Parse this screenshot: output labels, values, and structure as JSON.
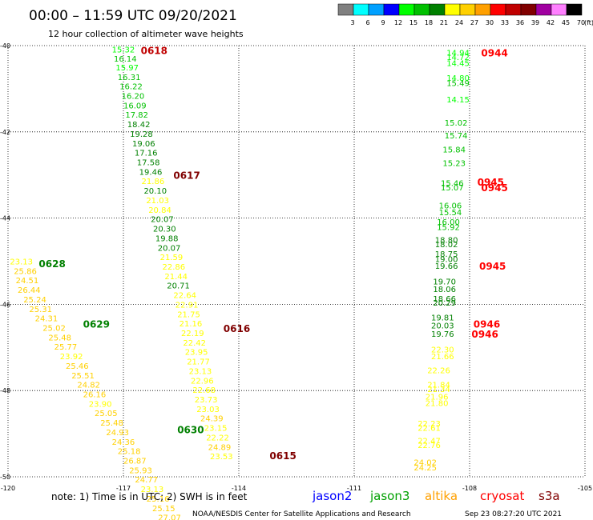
{
  "title": "00:00 – 11:59 UTC 09/20/2021",
  "subtitle": "12 hour collection of altimeter wave heights",
  "colorbar": {
    "ticks": [
      "3",
      "6",
      "9",
      "12",
      "15",
      "18",
      "21",
      "24",
      "27",
      "30",
      "33",
      "36",
      "39",
      "42",
      "45",
      "70"
    ],
    "unit": "(ft)",
    "colors": [
      "#808080",
      "#00ffff",
      "#00a0ff",
      "#0000ff",
      "#00ff00",
      "#00c000",
      "#008000",
      "#ffff00",
      "#ffd000",
      "#ffa000",
      "#ff0000",
      "#c00000",
      "#800000",
      "#a000a0",
      "#ff80ff",
      "#000000"
    ]
  },
  "note": "note: 1) Time is in UTC; 2) SWH is in feet",
  "satellites": [
    {
      "name": "jason2",
      "color": "#0000ff"
    },
    {
      "name": "jason3",
      "color": "#00a000"
    },
    {
      "name": "altika",
      "color": "#ffa000"
    },
    {
      "name": "cryosat",
      "color": "#ff0000"
    },
    {
      "name": "s3a",
      "color": "#800000"
    }
  ],
  "credit": "NOAA/NESDIS Center for Satellite Applications and Research",
  "timestamp": "Sep 23 08:27:20 UTC 2021",
  "chart_data": {
    "type": "scatter",
    "title": "00:00 – 11:59 UTC 09/20/2021",
    "xlabel": "",
    "ylabel": "",
    "xlim": [
      -120,
      -105
    ],
    "ylim": [
      -50,
      -40
    ],
    "x_ticks": [
      "-120",
      "-117",
      "-114",
      "-111",
      "-108",
      "-105"
    ],
    "y_ticks": [
      "-40",
      "-42",
      "-44",
      "-46",
      "-48",
      "-50"
    ],
    "grid": "dotted",
    "tracks": [
      {
        "label": "0618",
        "label_color": "#c00000",
        "label_x": -116.55,
        "label_y": -40.1,
        "points": [
          {
            "x": -117.3,
            "y": -40.08,
            "v": "15.32",
            "c": "#00ff00"
          },
          {
            "x": -117.25,
            "y": -40.3,
            "v": "16.14",
            "c": "#00c000"
          },
          {
            "x": -117.2,
            "y": -40.5,
            "v": "15.97",
            "c": "#00ff00"
          },
          {
            "x": -117.15,
            "y": -40.72,
            "v": "16.31",
            "c": "#00c000"
          },
          {
            "x": -117.1,
            "y": -40.94,
            "v": "16.22",
            "c": "#00c000"
          },
          {
            "x": -117.05,
            "y": -41.16,
            "v": "16.20",
            "c": "#00c000"
          },
          {
            "x": -117.0,
            "y": -41.38,
            "v": "16.09",
            "c": "#00c000"
          },
          {
            "x": -116.95,
            "y": -41.6,
            "v": "17.82",
            "c": "#00c000"
          },
          {
            "x": -116.9,
            "y": -41.82,
            "v": "18.42",
            "c": "#008000"
          },
          {
            "x": -116.83,
            "y": -42.04,
            "v": "19.28",
            "c": "#008000"
          },
          {
            "x": -116.77,
            "y": -42.26,
            "v": "19.06",
            "c": "#008000"
          },
          {
            "x": -116.71,
            "y": -42.48,
            "v": "17.16",
            "c": "#008000"
          },
          {
            "x": -116.65,
            "y": -42.7,
            "v": "17.58",
            "c": "#008000"
          },
          {
            "x": -116.59,
            "y": -42.92,
            "v": "19.46",
            "c": "#008000"
          },
          {
            "x": -116.53,
            "y": -43.14,
            "v": "21.86",
            "c": "#ffff00"
          },
          {
            "x": -116.47,
            "y": -43.36,
            "v": "20.10",
            "c": "#008000"
          },
          {
            "x": -116.41,
            "y": -43.58,
            "v": "21.03",
            "c": "#ffff00"
          },
          {
            "x": -116.35,
            "y": -43.8,
            "v": "20.84",
            "c": "#ffff00"
          },
          {
            "x": -116.29,
            "y": -44.02,
            "v": "20.07",
            "c": "#008000"
          },
          {
            "x": -116.23,
            "y": -44.24,
            "v": "20.30",
            "c": "#008000"
          },
          {
            "x": -116.17,
            "y": -44.46,
            "v": "19.88",
            "c": "#008000"
          },
          {
            "x": -116.11,
            "y": -44.68,
            "v": "20.07",
            "c": "#008000"
          },
          {
            "x": -116.05,
            "y": -44.9,
            "v": "21.59",
            "c": "#ffff00"
          },
          {
            "x": -115.99,
            "y": -45.12,
            "v": "22.86",
            "c": "#ffff00"
          },
          {
            "x": -115.93,
            "y": -45.34,
            "v": "21.44",
            "c": "#ffff00"
          },
          {
            "x": -115.87,
            "y": -45.56,
            "v": "20.71",
            "c": "#008000"
          }
        ]
      },
      {
        "label": "0617",
        "label_color": "#800000",
        "label_x": -115.7,
        "label_y": -43.0,
        "points": []
      },
      {
        "label": "0616",
        "label_color": "#800000",
        "label_x": -114.4,
        "label_y": -46.55,
        "points": [
          {
            "x": -115.7,
            "y": -45.78,
            "v": "22.64",
            "c": "#ffff00"
          },
          {
            "x": -115.65,
            "y": -46.0,
            "v": "22.91",
            "c": "#ffff00"
          },
          {
            "x": -115.6,
            "y": -46.22,
            "v": "21.75",
            "c": "#ffff00"
          },
          {
            "x": -115.55,
            "y": -46.44,
            "v": "21.16",
            "c": "#ffff00"
          },
          {
            "x": -115.5,
            "y": -46.66,
            "v": "22.19",
            "c": "#ffff00"
          },
          {
            "x": -115.45,
            "y": -46.88,
            "v": "22.42",
            "c": "#ffff00"
          },
          {
            "x": -115.4,
            "y": -47.1,
            "v": "23.95",
            "c": "#ffff00"
          },
          {
            "x": -115.35,
            "y": -47.32,
            "v": "21.77",
            "c": "#ffff00"
          },
          {
            "x": -115.3,
            "y": -47.54,
            "v": "23.13",
            "c": "#ffff00"
          },
          {
            "x": -115.25,
            "y": -47.76,
            "v": "22.96",
            "c": "#ffff00"
          },
          {
            "x": -115.2,
            "y": -47.98,
            "v": "22.68",
            "c": "#ffff00"
          },
          {
            "x": -115.15,
            "y": -48.2,
            "v": "23.73",
            "c": "#ffff00"
          },
          {
            "x": -115.1,
            "y": -48.42,
            "v": "23.03",
            "c": "#ffff00"
          },
          {
            "x": -115.0,
            "y": -48.64,
            "v": "24.39",
            "c": "#ffd000"
          },
          {
            "x": -114.9,
            "y": -48.86,
            "v": "23.15",
            "c": "#ffff00"
          },
          {
            "x": -114.85,
            "y": -49.08,
            "v": "22.22",
            "c": "#ffff00"
          },
          {
            "x": -114.8,
            "y": -49.3,
            "v": "24.89",
            "c": "#ffd000"
          },
          {
            "x": -114.75,
            "y": -49.52,
            "v": "23.53",
            "c": "#ffff00"
          }
        ]
      },
      {
        "label": "0615",
        "label_color": "#800000",
        "label_x": -113.2,
        "label_y": -49.5,
        "points": []
      },
      {
        "label": "0628",
        "label_color": "#008000",
        "label_x": -119.2,
        "label_y": -45.05,
        "points": [
          {
            "x": -119.95,
            "y": -45.0,
            "v": "23.13",
            "c": "#ffff00"
          },
          {
            "x": -119.85,
            "y": -45.22,
            "v": "25.86",
            "c": "#ffd000"
          },
          {
            "x": -119.8,
            "y": -45.44,
            "v": "24.51",
            "c": "#ffd000"
          },
          {
            "x": -119.75,
            "y": -45.66,
            "v": "26.44",
            "c": "#ffd000"
          },
          {
            "x": -119.6,
            "y": -45.88,
            "v": "25.24",
            "c": "#ffd000"
          },
          {
            "x": -119.45,
            "y": -46.1,
            "v": "25.31",
            "c": "#ffd000"
          },
          {
            "x": -119.3,
            "y": -46.32,
            "v": "24.31",
            "c": "#ffd000"
          },
          {
            "x": -119.1,
            "y": -46.54,
            "v": "25.02",
            "c": "#ffd000"
          },
          {
            "x": -118.95,
            "y": -46.76,
            "v": "25.48",
            "c": "#ffd000"
          },
          {
            "x": -118.8,
            "y": -46.98,
            "v": "25.77",
            "c": "#ffd000"
          },
          {
            "x": -118.65,
            "y": -47.2,
            "v": "23.92",
            "c": "#ffff00"
          },
          {
            "x": -118.5,
            "y": -47.42,
            "v": "25.46",
            "c": "#ffd000"
          },
          {
            "x": -118.35,
            "y": -47.64,
            "v": "25.51",
            "c": "#ffd000"
          },
          {
            "x": -118.2,
            "y": -47.86,
            "v": "24.82",
            "c": "#ffd000"
          },
          {
            "x": -118.05,
            "y": -48.08,
            "v": "26.16",
            "c": "#ffd000"
          },
          {
            "x": -117.9,
            "y": -48.3,
            "v": "23.90",
            "c": "#ffff00"
          },
          {
            "x": -117.75,
            "y": -48.52,
            "v": "25.05",
            "c": "#ffd000"
          },
          {
            "x": -117.6,
            "y": -48.74,
            "v": "25.48",
            "c": "#ffd000"
          },
          {
            "x": -117.45,
            "y": -48.96,
            "v": "24.93",
            "c": "#ffd000"
          },
          {
            "x": -117.3,
            "y": -49.18,
            "v": "24.36",
            "c": "#ffd000"
          },
          {
            "x": -117.15,
            "y": -49.4,
            "v": "25.18",
            "c": "#ffd000"
          },
          {
            "x": -117.0,
            "y": -49.62,
            "v": "26.87",
            "c": "#ffd000"
          },
          {
            "x": -116.85,
            "y": -49.84,
            "v": "25.93",
            "c": "#ffd000"
          },
          {
            "x": -116.7,
            "y": -50.06,
            "v": "24.77",
            "c": "#ffd000"
          },
          {
            "x": -116.55,
            "y": -50.28,
            "v": "23.13",
            "c": "#ffff00"
          },
          {
            "x": -116.4,
            "y": -50.5,
            "v": "25.16",
            "c": "#ffd000"
          },
          {
            "x": -116.25,
            "y": -50.72,
            "v": "25.15",
            "c": "#ffd000"
          },
          {
            "x": -116.1,
            "y": -50.94,
            "v": "27.07",
            "c": "#ffd000"
          }
        ]
      },
      {
        "label": "0629",
        "label_color": "#008000",
        "label_x": -118.05,
        "label_y": -46.45,
        "points": []
      },
      {
        "label": "0630",
        "label_color": "#008000",
        "label_x": -115.6,
        "label_y": -48.9,
        "points": []
      },
      {
        "label": "0944",
        "label_color": "#ff0000",
        "label_x": -107.7,
        "label_y": -40.16,
        "points": [
          {
            "x": -108.6,
            "y": -40.16,
            "v": "14.94",
            "c": "#00ff00"
          },
          {
            "x": -108.6,
            "y": -40.26,
            "v": "14.72",
            "c": "#00ff00"
          },
          {
            "x": -108.6,
            "y": -40.4,
            "v": "14.45",
            "c": "#00ff00"
          },
          {
            "x": -108.6,
            "y": -40.74,
            "v": "14.80",
            "c": "#00ff00"
          },
          {
            "x": -108.6,
            "y": -40.86,
            "v": "15.49",
            "c": "#00c000"
          },
          {
            "x": -108.6,
            "y": -41.24,
            "v": "14.15",
            "c": "#00ff00"
          },
          {
            "x": -108.65,
            "y": -41.78,
            "v": "15.02",
            "c": "#00c000"
          },
          {
            "x": -108.65,
            "y": -42.08,
            "v": "15.74",
            "c": "#00c000"
          },
          {
            "x": -108.7,
            "y": -42.4,
            "v": "15.84",
            "c": "#00c000"
          },
          {
            "x": -108.7,
            "y": -42.72,
            "v": "15.23",
            "c": "#00c000"
          },
          {
            "x": -108.75,
            "y": -43.18,
            "v": "15.46",
            "c": "#00c000"
          },
          {
            "x": -108.75,
            "y": -43.28,
            "v": "15.07",
            "c": "#00c000"
          },
          {
            "x": -108.8,
            "y": -43.7,
            "v": "16.06",
            "c": "#00c000"
          },
          {
            "x": -108.8,
            "y": -43.86,
            "v": "15.54",
            "c": "#00c000"
          }
        ]
      },
      {
        "label": "0945",
        "label_color": "#ff0000",
        "label_x": -107.8,
        "label_y": -43.15,
        "points": []
      },
      {
        "label": "0945",
        "label_color": "#ff0000",
        "label_x": -107.7,
        "label_y": -43.28,
        "points": []
      },
      {
        "label": "0945",
        "label_color": "#ff0000",
        "label_x": -107.75,
        "label_y": -45.1,
        "points": [
          {
            "x": -108.85,
            "y": -44.08,
            "v": "16.00",
            "c": "#00c000"
          },
          {
            "x": -108.85,
            "y": -44.2,
            "v": "15.92",
            "c": "#00c000"
          },
          {
            "x": -108.9,
            "y": -44.5,
            "v": "18.80",
            "c": "#008000"
          },
          {
            "x": -108.9,
            "y": -44.6,
            "v": "18.02",
            "c": "#008000"
          },
          {
            "x": -108.9,
            "y": -44.82,
            "v": "18.75",
            "c": "#008000"
          },
          {
            "x": -108.9,
            "y": -44.94,
            "v": "19.00",
            "c": "#008000"
          },
          {
            "x": -108.9,
            "y": -45.1,
            "v": "19.66",
            "c": "#008000"
          },
          {
            "x": -108.95,
            "y": -45.46,
            "v": "19.70",
            "c": "#008000"
          },
          {
            "x": -108.95,
            "y": -45.64,
            "v": "18.06",
            "c": "#008000"
          },
          {
            "x": -108.95,
            "y": -45.86,
            "v": "18.66",
            "c": "#008000"
          },
          {
            "x": -108.95,
            "y": -45.96,
            "v": "20.29",
            "c": "#008000"
          },
          {
            "x": -109.0,
            "y": -46.3,
            "v": "19.81",
            "c": "#008000"
          },
          {
            "x": -109.0,
            "y": -46.48,
            "v": "20.03",
            "c": "#008000"
          },
          {
            "x": -109.0,
            "y": -46.68,
            "v": "19.76",
            "c": "#008000"
          }
        ]
      },
      {
        "label": "0946",
        "label_color": "#ff0000",
        "label_x": -107.9,
        "label_y": -46.45,
        "points": []
      },
      {
        "label": "0946",
        "label_color": "#ff0000",
        "label_x": -107.95,
        "label_y": -46.68,
        "points": [
          {
            "x": -109.0,
            "y": -47.04,
            "v": "22.30",
            "c": "#ffff00"
          },
          {
            "x": -109.0,
            "y": -47.2,
            "v": "21.66",
            "c": "#ffff00"
          },
          {
            "x": -109.1,
            "y": -47.52,
            "v": "22.26",
            "c": "#ffff00"
          },
          {
            "x": -109.1,
            "y": -47.86,
            "v": "21.84",
            "c": "#ffff00"
          },
          {
            "x": -109.1,
            "y": -47.96,
            "v": "21.34",
            "c": "#ffff00"
          },
          {
            "x": -109.15,
            "y": -48.14,
            "v": "21.96",
            "c": "#ffff00"
          },
          {
            "x": -109.15,
            "y": -48.28,
            "v": "21.80",
            "c": "#ffff00"
          },
          {
            "x": -109.35,
            "y": -48.76,
            "v": "22.23",
            "c": "#ffff00"
          },
          {
            "x": -109.35,
            "y": -48.86,
            "v": "22.61",
            "c": "#ffff00"
          },
          {
            "x": -109.35,
            "y": -49.16,
            "v": "22.47",
            "c": "#ffff00"
          },
          {
            "x": -109.35,
            "y": -49.26,
            "v": "22.76",
            "c": "#ffff00"
          },
          {
            "x": -109.45,
            "y": -49.66,
            "v": "24.02",
            "c": "#ffd000"
          },
          {
            "x": -109.45,
            "y": -49.78,
            "v": "24.25",
            "c": "#ffd000"
          }
        ]
      }
    ]
  }
}
